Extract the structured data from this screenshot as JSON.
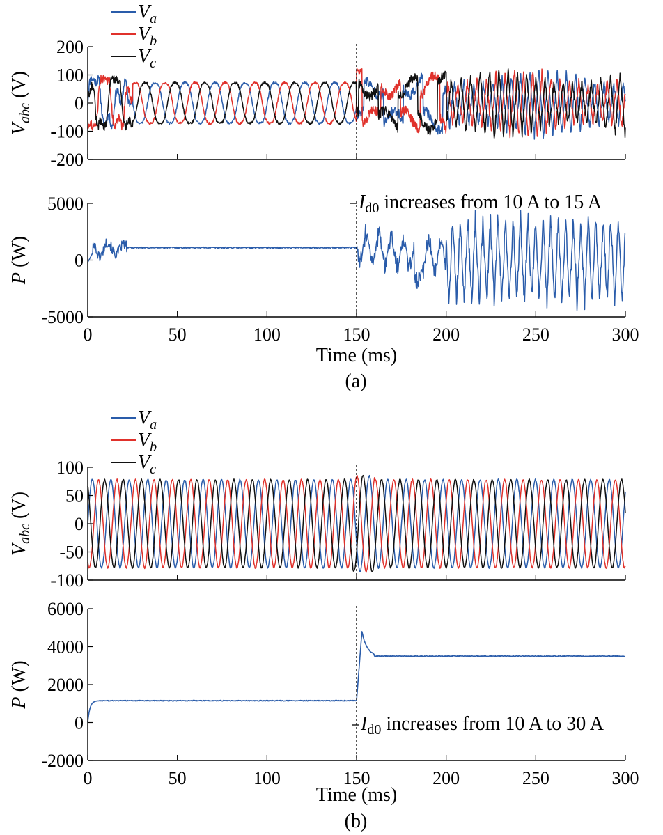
{
  "chart_data": [
    {
      "id": "a1",
      "type": "line",
      "ylabel": "V",
      "ylabel_sub": "abc",
      "ylabel_unit": " (V)",
      "xlim": [
        0,
        300
      ],
      "ylim": [
        -200,
        200
      ],
      "yticks": [
        -200,
        -100,
        0,
        100,
        200
      ],
      "xticks": [
        0,
        50,
        100,
        150,
        200,
        250,
        300
      ],
      "xtick_labels_shown": false,
      "event_time": 150,
      "legend": [
        {
          "symbol": "V",
          "sub": "a",
          "color": "#2a5caa"
        },
        {
          "symbol": "V",
          "sub": "b",
          "color": "#e0312b"
        },
        {
          "symbol": "V",
          "sub": "c",
          "color": "#111111"
        }
      ],
      "series": [
        {
          "name": "Va",
          "color": "#2a5caa"
        },
        {
          "name": "Vb",
          "color": "#e0312b"
        },
        {
          "name": "Vc",
          "color": "#111111"
        }
      ],
      "description": {
        "period_ms": 16.7,
        "amplitude_before": 80,
        "amplitude_after_200ms": 120,
        "note": "oscillation grows after 150 ms"
      }
    },
    {
      "id": "a2",
      "type": "line",
      "ylabel": "P",
      "ylabel_unit": " (W)",
      "xlim": [
        0,
        300
      ],
      "ylim": [
        -5000,
        5000
      ],
      "yticks": [
        -5000,
        0,
        5000
      ],
      "xticks": [
        0,
        50,
        100,
        150,
        200,
        250,
        300
      ],
      "xtick_labels_shown": true,
      "xlabel": "Time (ms)",
      "event_time": 150,
      "series": [
        {
          "name": "P",
          "color": "#2a5caa"
        }
      ],
      "description": {
        "steady_before": 1100,
        "oscillation_after_200ms": [
          -4500,
          4200
        ]
      }
    },
    {
      "id": "b1",
      "type": "line",
      "ylabel": "V",
      "ylabel_sub": "abc",
      "ylabel_unit": " (V)",
      "xlim": [
        0,
        300
      ],
      "ylim": [
        -100,
        100
      ],
      "yticks": [
        -100,
        -50,
        0,
        50,
        100
      ],
      "xticks": [
        0,
        50,
        100,
        150,
        200,
        250,
        300
      ],
      "xtick_labels_shown": false,
      "event_time": 150,
      "legend": [
        {
          "symbol": "V",
          "sub": "a",
          "color": "#2a5caa"
        },
        {
          "symbol": "V",
          "sub": "b",
          "color": "#e0312b"
        },
        {
          "symbol": "V",
          "sub": "c",
          "color": "#111111"
        }
      ],
      "series": [
        {
          "name": "Va",
          "color": "#2a5caa"
        },
        {
          "name": "Vb",
          "color": "#e0312b"
        },
        {
          "name": "Vc",
          "color": "#111111"
        }
      ],
      "description": {
        "period_ms": 10.3,
        "amplitude": 78
      }
    },
    {
      "id": "b2",
      "type": "line",
      "ylabel": "P",
      "ylabel_unit": " (W)",
      "xlim": [
        0,
        300
      ],
      "ylim": [
        -2000,
        6000
      ],
      "yticks": [
        -2000,
        0,
        2000,
        4000,
        6000
      ],
      "xticks": [
        0,
        50,
        100,
        150,
        200,
        250,
        300
      ],
      "xtick_labels_shown": true,
      "xlabel": "Time (ms)",
      "event_time": 150,
      "series": [
        {
          "name": "P",
          "color": "#2a5caa"
        }
      ],
      "description": {
        "steady_before": 1150,
        "peak_after_step": 4800,
        "steady_after": 3500
      }
    }
  ],
  "captions": {
    "a": "(a)",
    "b": "(b)"
  },
  "annotations": {
    "a": {
      "symbol": "I",
      "sub": "d0",
      "text": " increases from 10 A to 15 A"
    },
    "b": {
      "symbol": "I",
      "sub": "d0",
      "text": " increases from 10 A to 30 A"
    }
  }
}
